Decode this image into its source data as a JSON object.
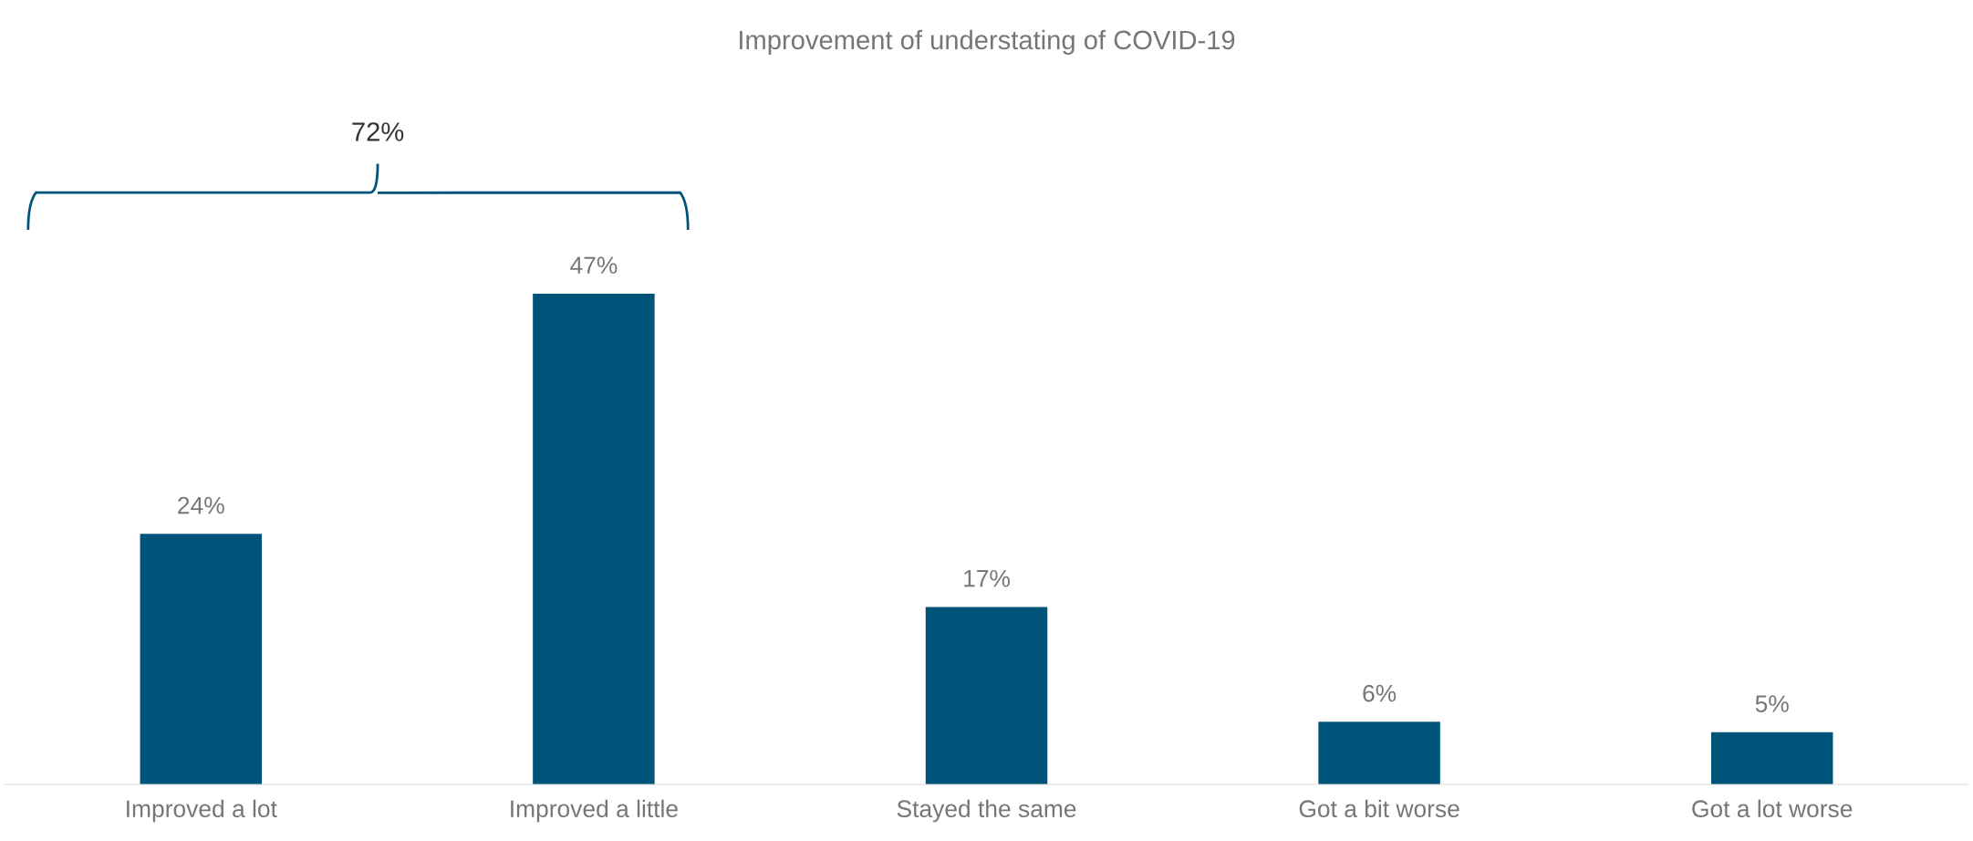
{
  "chart_data": {
    "type": "bar",
    "title": "Improvement of understating of COVID-19",
    "categories": [
      "Improved a lot",
      "Improved a little",
      "Stayed the same",
      "Got a bit worse",
      "Got a lot worse"
    ],
    "values": [
      24,
      47,
      17,
      6,
      5
    ],
    "value_labels": [
      "24%",
      "47%",
      "17%",
      "6%",
      "5%"
    ],
    "color": "#00547a",
    "annotations": [
      "72%"
    ],
    "grid": false
  }
}
